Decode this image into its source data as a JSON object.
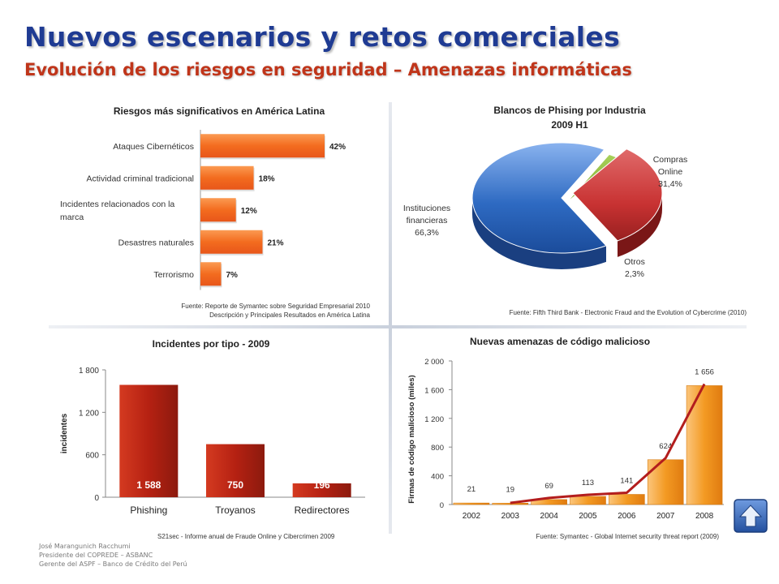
{
  "slide": {
    "title": "Nuevos escenarios y retos comerciales",
    "subtitle": "Evolución de los riesgos en seguridad – Amenazas informáticas",
    "footer": [
      "José Marangunich Racchumi",
      "Presidente del COPREDE – ASBANC",
      "Gerente del ASPF – Banco de Crédito del Perú"
    ]
  },
  "colors": {
    "title": "#1f3b93",
    "subtitle": "#c0351a",
    "orange": "#f36c1f",
    "red": "#b52112",
    "blue": "#2e6ac2",
    "green": "#7aa82e",
    "darkred": "#b31d1d"
  },
  "chart_data": [
    {
      "id": "riesgos",
      "type": "bar",
      "orientation": "horizontal",
      "title": "Riesgos más significativos en América Latina",
      "categories": [
        "Ataques Cibernéticos",
        "Actividad criminal tradicional",
        "Incidentes relacionados con la marca",
        "Desastres naturales",
        "Terrorismo"
      ],
      "category_lines": [
        [
          "Ataques Cibernéticos"
        ],
        [
          "Actividad criminal tradicional"
        ],
        [
          "Incidentes relacionados con la",
          "marca"
        ],
        [
          "Desastres naturales"
        ],
        [
          "Terrorismo"
        ]
      ],
      "values": [
        42,
        18,
        12,
        21,
        7
      ],
      "labels": [
        "42%",
        "18%",
        "12%",
        "21%",
        "7%"
      ],
      "xlim": [
        0,
        42
      ],
      "source": [
        "Fuente: Reporte de Symantec sobre Seguridad Empresarial 2010",
        "Descripción y Principales Resultados en América Latina"
      ]
    },
    {
      "id": "phishing",
      "type": "pie",
      "title": [
        "Blancos de Phising por Industria",
        "2009 H1"
      ],
      "slices": [
        {
          "label": "Instituciones financieras",
          "label_lines": [
            "Instituciones",
            "financieras",
            "66,3%"
          ],
          "value": 66.3
        },
        {
          "label": "Otros",
          "label_lines": [
            "Otros",
            "2,3%"
          ],
          "value": 2.3
        },
        {
          "label": "Compras Online",
          "label_lines": [
            "Compras",
            "Online",
            "31,4%"
          ],
          "value": 31.4
        }
      ],
      "source": "Fuente: Fifth Third Bank - Electronic Fraud and the Evolution of Cybercrime (2010)"
    },
    {
      "id": "incidentes",
      "type": "bar",
      "title": "Incidentes por tipo - 2009",
      "categories": [
        "Phishing",
        "Troyanos",
        "Redirectores"
      ],
      "values": [
        1588,
        750,
        196
      ],
      "labels": [
        "1 588",
        "750",
        "196"
      ],
      "ylabel": "incidentes",
      "ylim": [
        0,
        1800
      ],
      "yticks": [
        0,
        600,
        1200,
        1800
      ],
      "ytick_labels": [
        "0",
        "600",
        "1 200",
        "1 800"
      ],
      "source": "S21sec - Informe anual de Fraude Online y Cibercrimen 2009"
    },
    {
      "id": "malicioso",
      "type": "bar",
      "title": "Nuevas amenazas de código malicioso",
      "categories": [
        "2002",
        "2003",
        "2004",
        "2005",
        "2006",
        "2007",
        "2008"
      ],
      "values": [
        21,
        19,
        69,
        113,
        141,
        624,
        1656
      ],
      "labels": [
        "21",
        "19",
        "69",
        "113",
        "141",
        "624",
        "1 656"
      ],
      "ylabel": "Firmas de código malicioso  (miles)",
      "ylim": [
        0,
        2000
      ],
      "yticks": [
        0,
        400,
        800,
        1200,
        1600,
        2000
      ],
      "ytick_labels": [
        "0",
        "400",
        "800",
        "1 200",
        "1 600",
        "2 000"
      ],
      "trend": true,
      "source": "Fuente: Symantec - Global Internet security threat report (2009)"
    }
  ]
}
